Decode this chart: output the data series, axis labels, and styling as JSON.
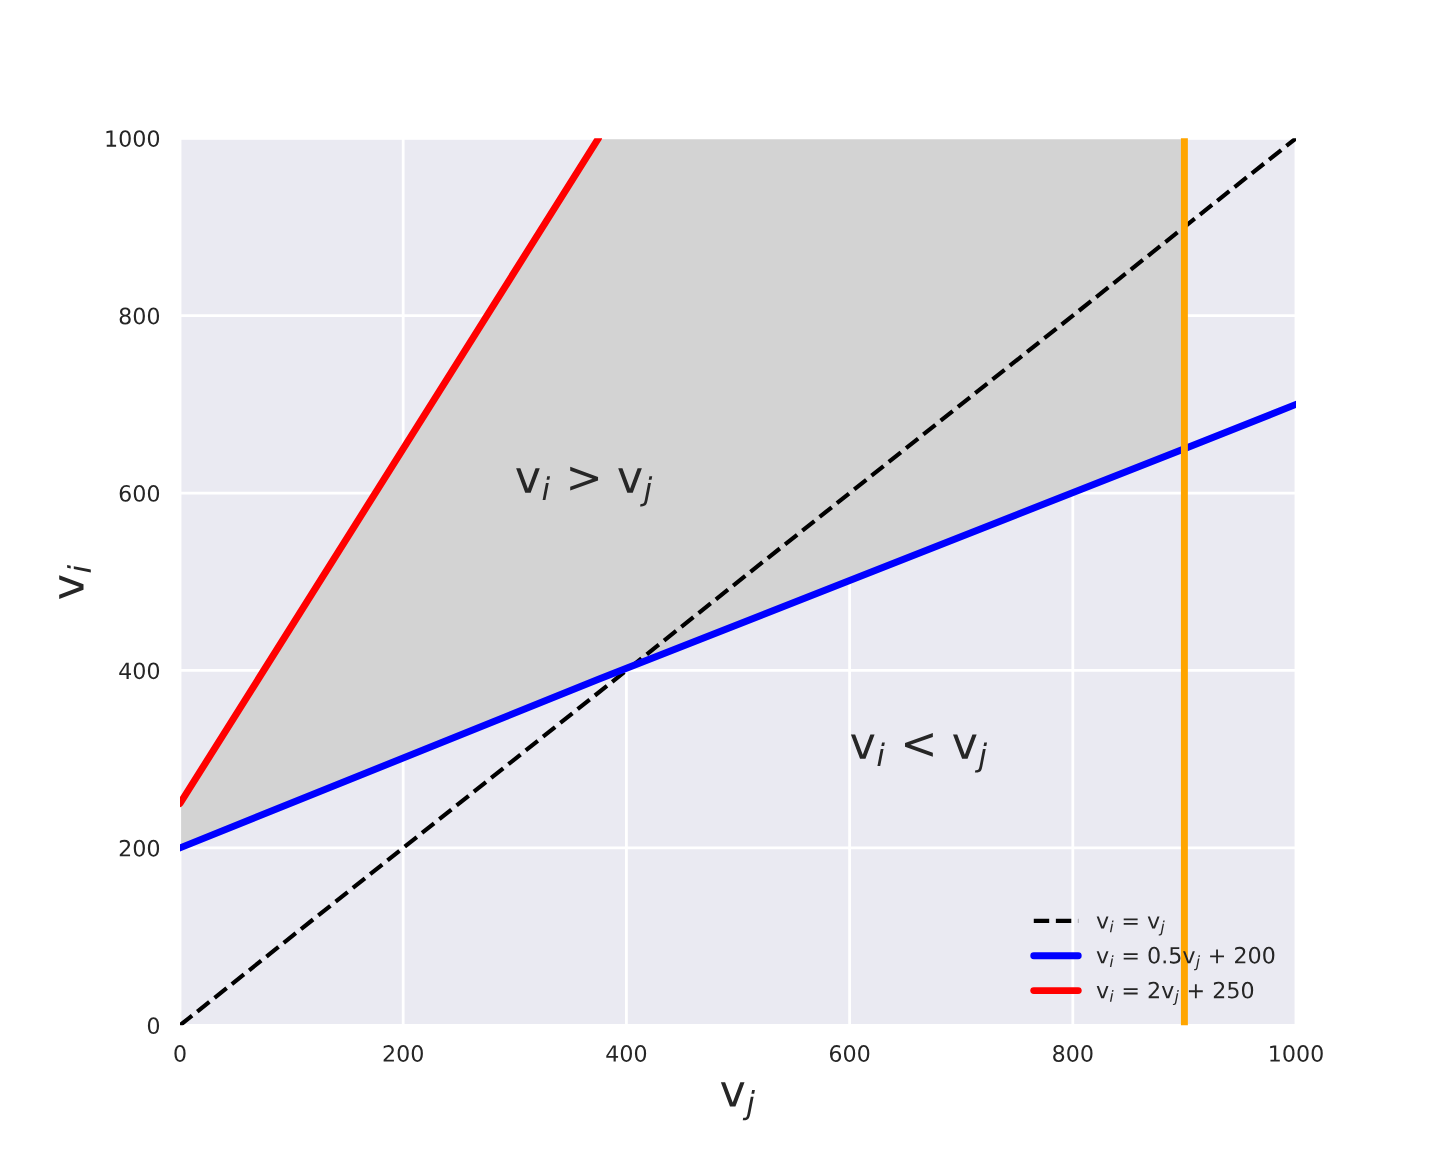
{
  "chart_data": {
    "type": "line",
    "xlabel": "v$_{j}$",
    "ylabel": "v$_{i}$",
    "xlim": [
      0,
      1000
    ],
    "ylim": [
      0,
      1000
    ],
    "xticks": [
      0,
      200,
      400,
      600,
      800,
      1000
    ],
    "yticks": [
      0,
      200,
      400,
      600,
      800,
      1000
    ],
    "grid": true,
    "legend": "bottom right",
    "marker": "none",
    "series": [
      {
        "name": "v$_{i}$ = v$_{j}$",
        "color": "#000000",
        "line_style": "dashed",
        "x": [
          0,
          1000
        ],
        "values": [
          0,
          1000
        ]
      },
      {
        "name": "v$_{i}$ = 0.5v$_{j}$ + 200",
        "color": "#0000ff",
        "line_style": "solid",
        "x": [
          0,
          375,
          900,
          1000
        ],
        "values": [
          200,
          390,
          650,
          700
        ],
        "lower": [
          200,
          390,
          650,
          null
        ],
        "upper": [
          250,
          1000,
          1000,
          null
        ]
      },
      {
        "name": "v$_{i}$ = 2v$_{j}$ + 250",
        "color": "#ff0000",
        "line_style": "solid",
        "x": [
          0,
          375
        ],
        "values": [
          250,
          1000
        ]
      }
    ],
    "ref_lines": [
      {
        "axis": "x",
        "value": 900,
        "color": "#ffa500"
      }
    ],
    "annotations": [
      "v$_{i}$ > v$_{j}$",
      "v$_{i}$ < v$_{j}$"
    ]
  }
}
